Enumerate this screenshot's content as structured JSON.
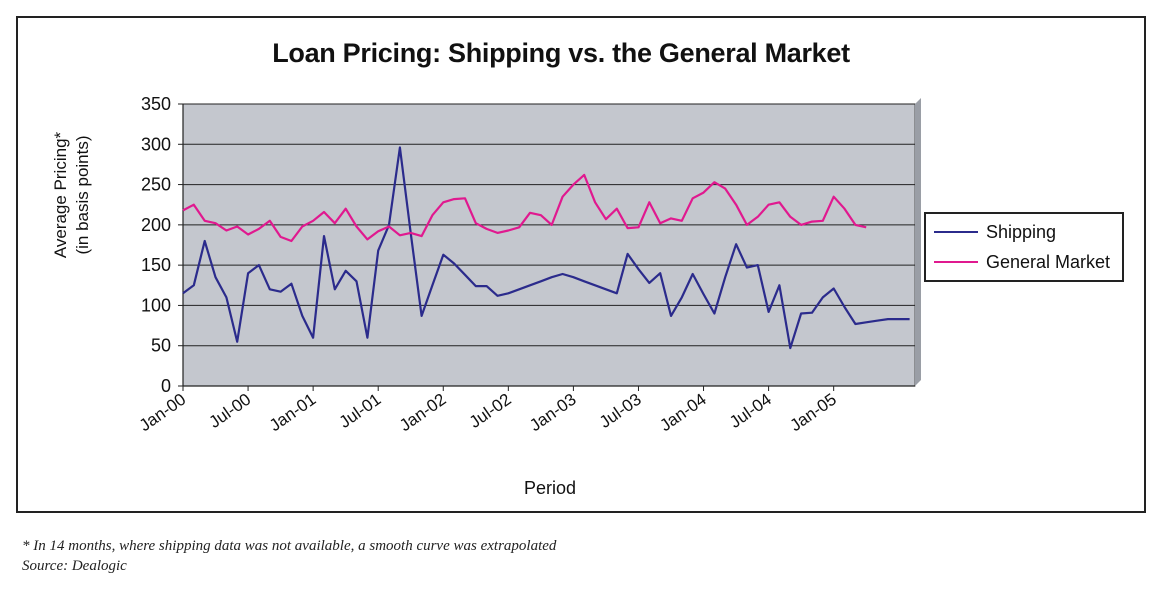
{
  "chart_data": {
    "type": "line",
    "title": "Loan Pricing: Shipping vs. the General Market",
    "xlabel": "Period",
    "ylabel": "Average Pricing*",
    "ylabel_sub": "(in basis points)",
    "ylim": [
      0,
      350
    ],
    "yticks": [
      0,
      50,
      100,
      150,
      200,
      250,
      300,
      350
    ],
    "xticks": [
      "Jan-00",
      "Jul-00",
      "Jan-01",
      "Jul-01",
      "Jan-02",
      "Jul-02",
      "Jan-03",
      "Jul-03",
      "Jan-04",
      "Jul-04",
      "Jan-05"
    ],
    "x_start_month": 0,
    "months_count": 68,
    "grid": true,
    "legend_position": "right",
    "series": [
      {
        "name": "Shipping",
        "color": "#2b2b8c",
        "values": [
          115,
          125,
          180,
          135,
          110,
          55,
          140,
          150,
          120,
          117,
          127,
          87,
          60,
          186,
          120,
          143,
          130,
          60,
          168,
          200,
          296,
          190,
          87,
          125,
          163,
          152,
          138,
          124,
          124,
          112,
          115,
          120,
          125,
          130,
          135,
          139,
          135,
          130,
          125,
          120,
          115,
          164,
          145,
          128,
          140,
          87,
          110,
          139,
          114,
          90,
          135,
          176,
          147,
          150,
          92,
          125,
          47,
          90,
          91,
          110,
          121,
          98,
          77,
          79,
          81,
          83,
          83,
          83
        ],
        "months": [
          0,
          1,
          2,
          3,
          4,
          5,
          6,
          7,
          8,
          9,
          10,
          11,
          12,
          13,
          14,
          15,
          16,
          17,
          18,
          19,
          20,
          21,
          22,
          23,
          24,
          25,
          26,
          27,
          28,
          29,
          30,
          31,
          32,
          33,
          34,
          35,
          36,
          37,
          38,
          39,
          40,
          41,
          42,
          43,
          44,
          45,
          46,
          47,
          48,
          49,
          50,
          51,
          52,
          53,
          54,
          55,
          56,
          57,
          58,
          59,
          60,
          61,
          62,
          63,
          64,
          65,
          66,
          67
        ]
      },
      {
        "name": "General Market",
        "color": "#e0198f",
        "values": [
          218,
          225,
          205,
          202,
          193,
          198,
          188,
          195,
          205,
          185,
          180,
          198,
          205,
          216,
          202,
          220,
          198,
          182,
          192,
          198,
          187,
          190,
          186,
          212,
          228,
          232,
          233,
          202,
          195,
          190,
          193,
          197,
          215,
          212,
          200,
          235,
          250,
          262,
          228,
          207,
          220,
          196,
          197,
          228,
          202,
          208,
          205,
          233,
          240,
          253,
          245,
          225,
          200,
          210,
          225,
          228,
          210,
          200,
          204,
          205,
          235,
          220,
          200,
          197
        ],
        "months": [
          0,
          1,
          2,
          3,
          4,
          5,
          6,
          7,
          8,
          9,
          10,
          11,
          12,
          13,
          14,
          15,
          16,
          17,
          18,
          19,
          20,
          21,
          22,
          23,
          24,
          25,
          26,
          27,
          28,
          29,
          30,
          31,
          32,
          33,
          34,
          35,
          36,
          37,
          38,
          39,
          40,
          41,
          42,
          43,
          44,
          45,
          46,
          47,
          48,
          49,
          50,
          51,
          52,
          53,
          54,
          55,
          56,
          57,
          58,
          59,
          60,
          61,
          62,
          63
        ]
      }
    ]
  },
  "footnote": "* In 14 months, where shipping data was not available, a smooth curve was extrapolated",
  "source": "Source: Dealogic",
  "colors": {
    "plot_bg": "#c4c7ce",
    "grid": "#222222"
  }
}
